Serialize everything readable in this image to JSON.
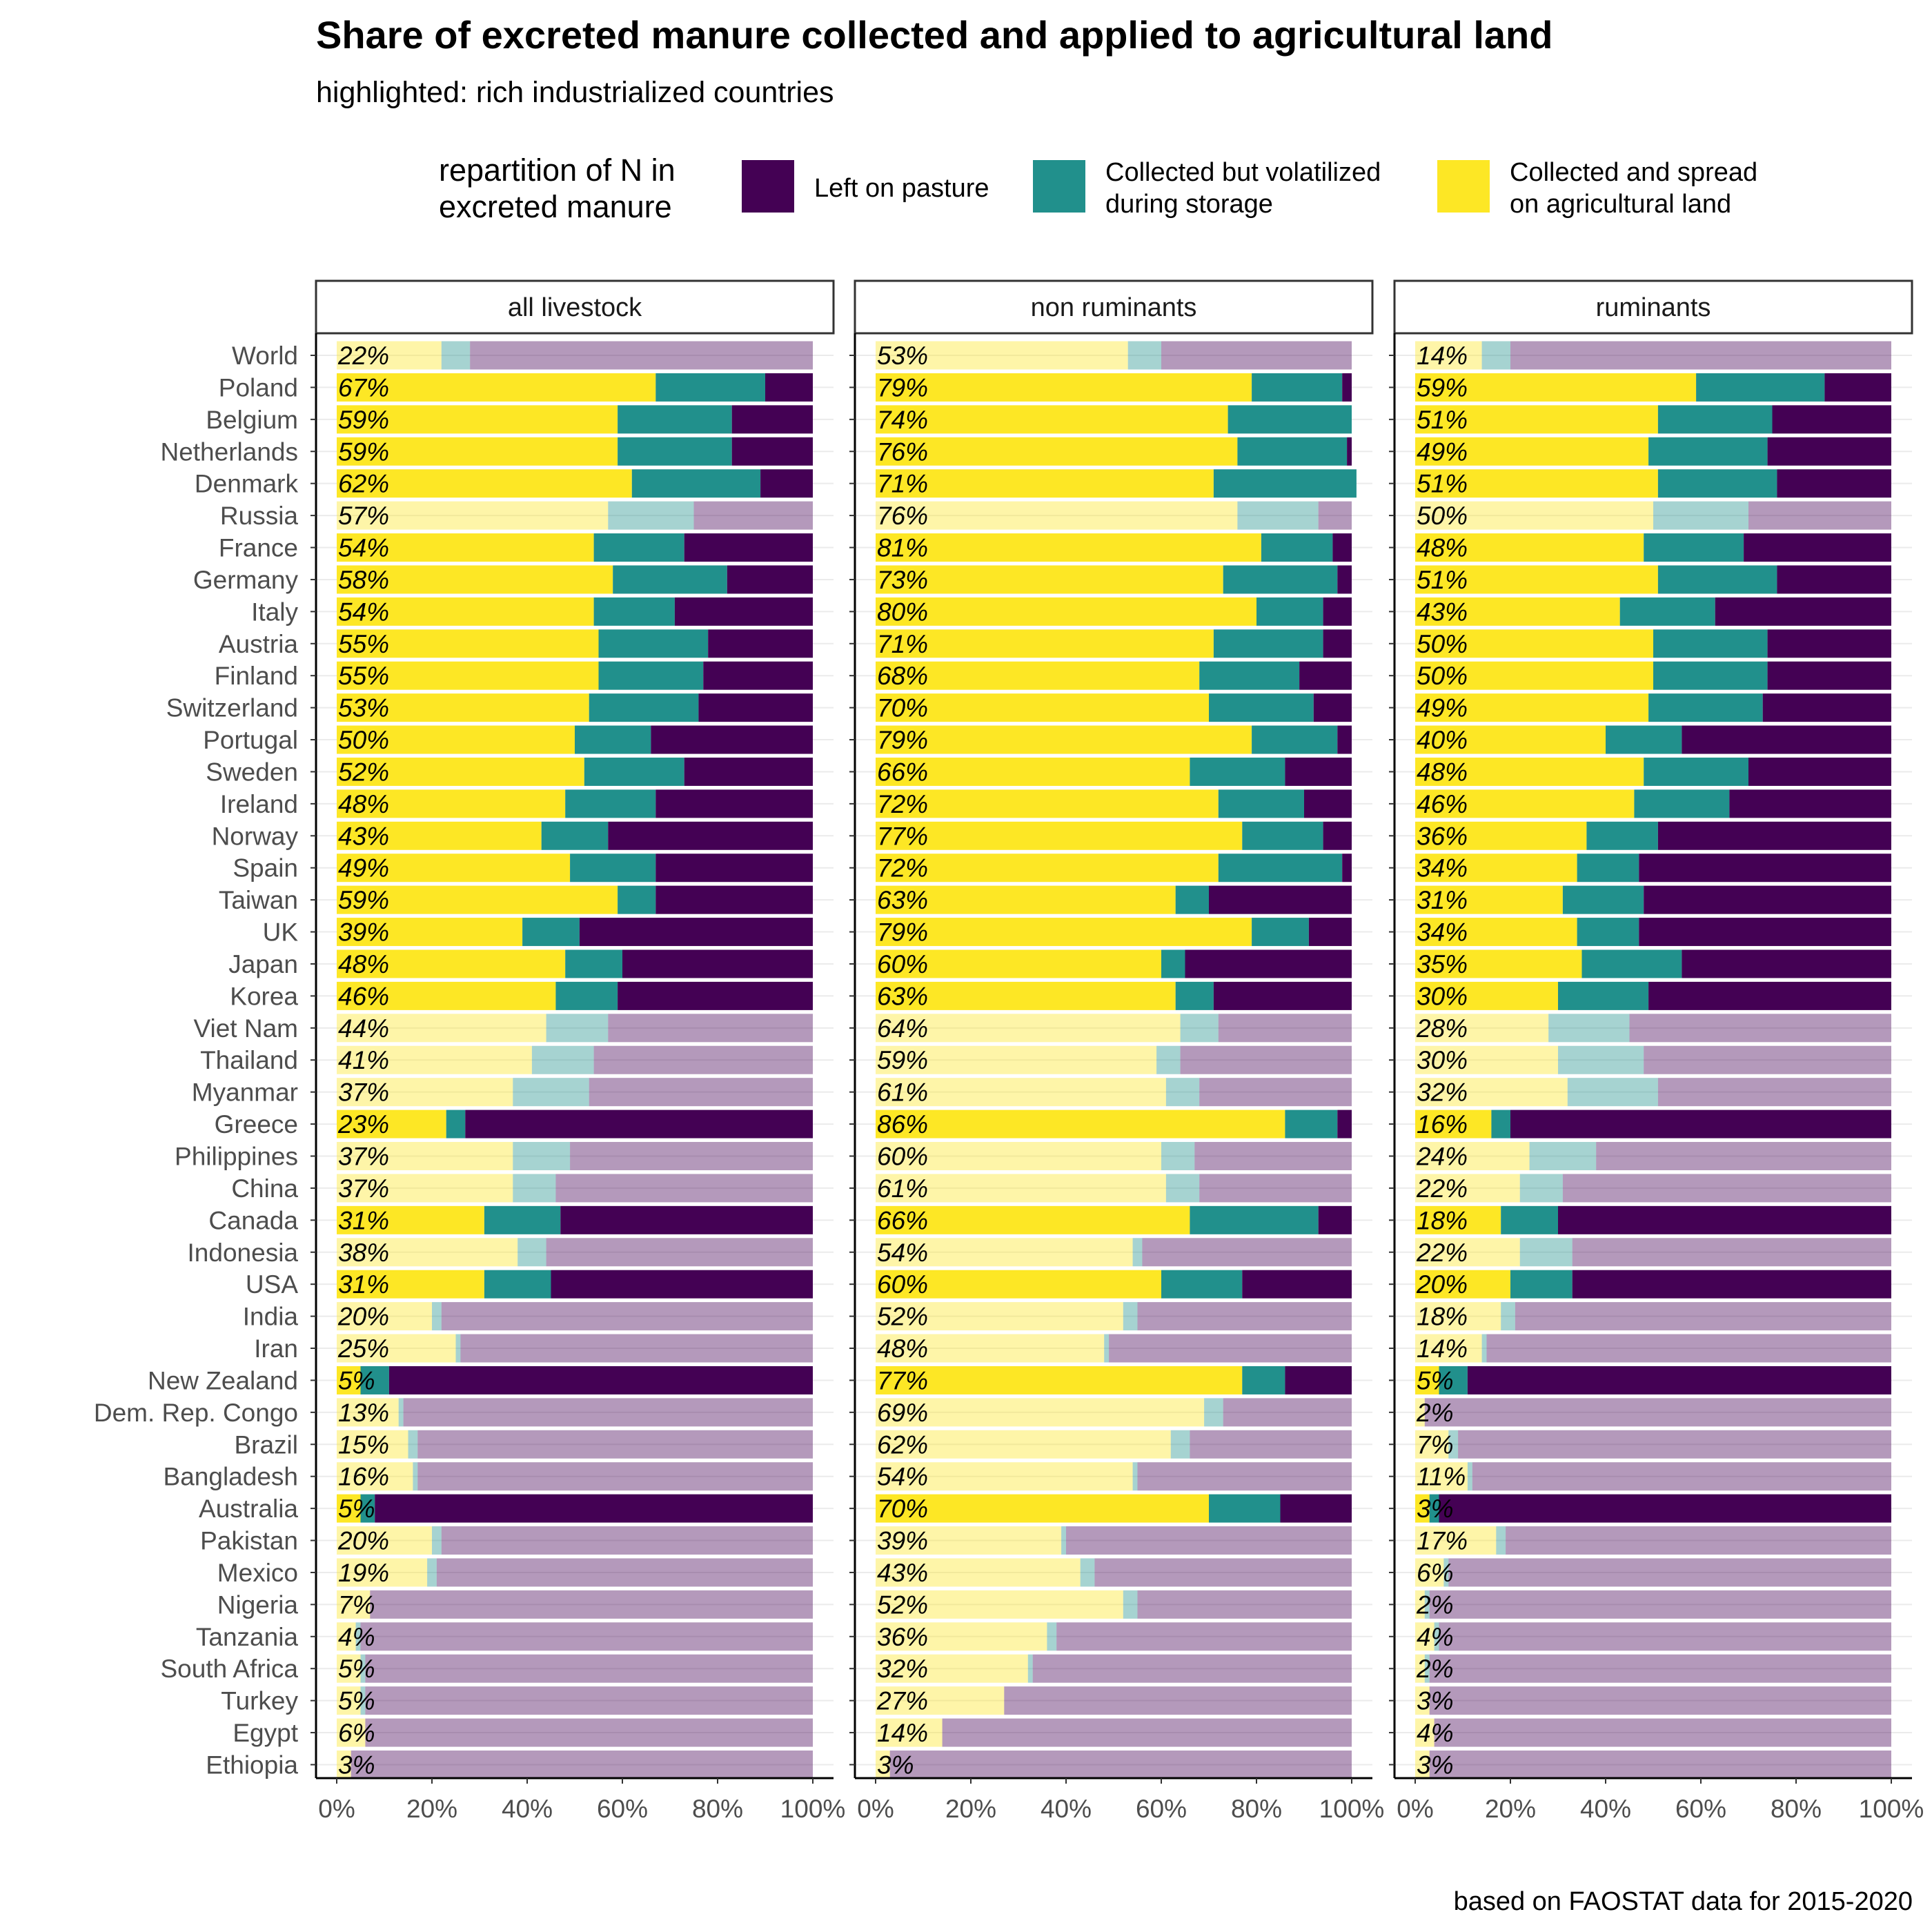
{
  "title": "Share of excreted manure collected and applied to agricultural land",
  "subtitle": "highlighted: rich industrialized countries",
  "caption": "based on FAOSTAT data for 2015-2020",
  "legend": {
    "title_line1": "repartition of N in",
    "title_line2": "excreted manure",
    "items": [
      {
        "key": "pasture",
        "line1": "Left on pasture",
        "line2": "",
        "color": "#440154"
      },
      {
        "key": "volatilized",
        "line1": "Collected but volatilized",
        "line2": "during storage",
        "color": "#21908C"
      },
      {
        "key": "spread",
        "line1": "Collected and spread",
        "line2": "on agricultural land",
        "color": "#FDE725"
      }
    ]
  },
  "chart_data": {
    "type": "bar",
    "orientation": "horizontal-stacked",
    "xaxis_ticks": [
      "0%",
      "20%",
      "40%",
      "60%",
      "80%",
      "100%"
    ],
    "xlim": [
      0,
      100
    ],
    "highlight_note": "highlighted: rich industrialized countries",
    "countries": [
      "World",
      "Poland",
      "Belgium",
      "Netherlands",
      "Denmark",
      "Russia",
      "France",
      "Germany",
      "Italy",
      "Austria",
      "Finland",
      "Switzerland",
      "Portugal",
      "Sweden",
      "Ireland",
      "Norway",
      "Spain",
      "Taiwan",
      "UK",
      "Japan",
      "Korea",
      "Viet Nam",
      "Thailand",
      "Myanmar",
      "Greece",
      "Philippines",
      "China",
      "Canada",
      "Indonesia",
      "USA",
      "India",
      "Iran",
      "New Zealand",
      "Dem. Rep. Congo",
      "Brazil",
      "Bangladesh",
      "Australia",
      "Pakistan",
      "Mexico",
      "Nigeria",
      "Tanzania",
      "South Africa",
      "Turkey",
      "Egypt",
      "Ethiopia"
    ],
    "highlighted": [
      "Poland",
      "Belgium",
      "Netherlands",
      "Denmark",
      "France",
      "Germany",
      "Italy",
      "Austria",
      "Finland",
      "Switzerland",
      "Portugal",
      "Sweden",
      "Ireland",
      "Norway",
      "Spain",
      "Taiwan",
      "UK",
      "Japan",
      "Korea",
      "Greece",
      "Canada",
      "USA",
      "New Zealand",
      "Australia"
    ],
    "panels": [
      {
        "name": "all livestock",
        "spread": [
          22,
          67,
          59,
          59,
          62,
          57,
          54,
          58,
          54,
          55,
          55,
          53,
          50,
          52,
          48,
          43,
          49,
          59,
          39,
          48,
          46,
          44,
          41,
          37,
          23,
          37,
          37,
          31,
          38,
          31,
          20,
          25,
          5,
          13,
          15,
          16,
          5,
          20,
          19,
          7,
          4,
          5,
          5,
          6,
          3
        ],
        "volatilized": [
          6,
          23,
          24,
          24,
          27,
          18,
          19,
          24,
          17,
          23,
          22,
          23,
          16,
          21,
          19,
          14,
          18,
          8,
          12,
          12,
          13,
          13,
          13,
          16,
          4,
          12,
          9,
          16,
          6,
          14,
          2,
          1,
          6,
          1,
          2,
          1,
          3,
          2,
          2,
          0,
          1,
          1,
          1,
          0,
          0
        ],
        "labels": [
          "22%",
          "67%",
          "59%",
          "59%",
          "62%",
          "57%",
          "54%",
          "58%",
          "54%",
          "55%",
          "55%",
          "53%",
          "50%",
          "52%",
          "48%",
          "43%",
          "49%",
          "59%",
          "39%",
          "48%",
          "46%",
          "44%",
          "41%",
          "37%",
          "23%",
          "37%",
          "37%",
          "31%",
          "38%",
          "31%",
          "20%",
          "25%",
          "5%",
          "13%",
          "15%",
          "16%",
          "5%",
          "20%",
          "19%",
          "7%",
          "4%",
          "5%",
          "5%",
          "6%",
          "3%"
        ]
      },
      {
        "name": "non ruminants",
        "spread": [
          53,
          79,
          74,
          76,
          71,
          76,
          81,
          73,
          80,
          71,
          68,
          70,
          79,
          66,
          72,
          77,
          72,
          63,
          79,
          60,
          63,
          64,
          59,
          61,
          86,
          60,
          61,
          66,
          54,
          60,
          52,
          48,
          77,
          69,
          62,
          54,
          70,
          39,
          43,
          52,
          36,
          32,
          27,
          14,
          3
        ],
        "volatilized": [
          7,
          19,
          26,
          23,
          30,
          17,
          15,
          24,
          14,
          23,
          21,
          22,
          18,
          20,
          18,
          17,
          26,
          7,
          12,
          5,
          8,
          8,
          5,
          7,
          11,
          7,
          7,
          27,
          2,
          17,
          3,
          1,
          9,
          4,
          4,
          1,
          15,
          1,
          3,
          3,
          2,
          1,
          0,
          0,
          0
        ],
        "labels": [
          "53%",
          "79%",
          "74%",
          "76%",
          "71%",
          "76%",
          "81%",
          "73%",
          "80%",
          "71%",
          "68%",
          "70%",
          "79%",
          "66%",
          "72%",
          "77%",
          "72%",
          "63%",
          "79%",
          "60%",
          "63%",
          "64%",
          "59%",
          "61%",
          "86%",
          "60%",
          "61%",
          "66%",
          "54%",
          "60%",
          "52%",
          "48%",
          "77%",
          "69%",
          "62%",
          "54%",
          "70%",
          "39%",
          "43%",
          "52%",
          "36%",
          "32%",
          "27%",
          "14%",
          "3%"
        ]
      },
      {
        "name": "ruminants",
        "spread": [
          14,
          59,
          51,
          49,
          51,
          50,
          48,
          51,
          43,
          50,
          50,
          49,
          40,
          48,
          46,
          36,
          34,
          31,
          34,
          35,
          30,
          28,
          30,
          32,
          16,
          24,
          22,
          18,
          22,
          20,
          18,
          14,
          5,
          2,
          7,
          11,
          3,
          17,
          6,
          2,
          4,
          2,
          3,
          4,
          3
        ],
        "volatilized": [
          6,
          27,
          24,
          25,
          25,
          20,
          21,
          25,
          20,
          24,
          24,
          24,
          16,
          22,
          20,
          15,
          13,
          17,
          13,
          21,
          19,
          17,
          18,
          19,
          4,
          14,
          9,
          12,
          11,
          13,
          3,
          1,
          6,
          0,
          2,
          1,
          2,
          2,
          1,
          1,
          1,
          1,
          0,
          0,
          0
        ],
        "labels": [
          "14%",
          "59%",
          "51%",
          "49%",
          "51%",
          "50%",
          "48%",
          "51%",
          "43%",
          "50%",
          "50%",
          "49%",
          "40%",
          "48%",
          "46%",
          "36%",
          "34%",
          "31%",
          "34%",
          "35%",
          "30%",
          "28%",
          "30%",
          "32%",
          "16%",
          "24%",
          "22%",
          "18%",
          "22%",
          "20%",
          "18%",
          "14%",
          "5%",
          "2%",
          "7%",
          "11%",
          "3%",
          "17%",
          "6%",
          "2%",
          "4%",
          "2%",
          "3%",
          "4%",
          "3%"
        ]
      }
    ]
  }
}
